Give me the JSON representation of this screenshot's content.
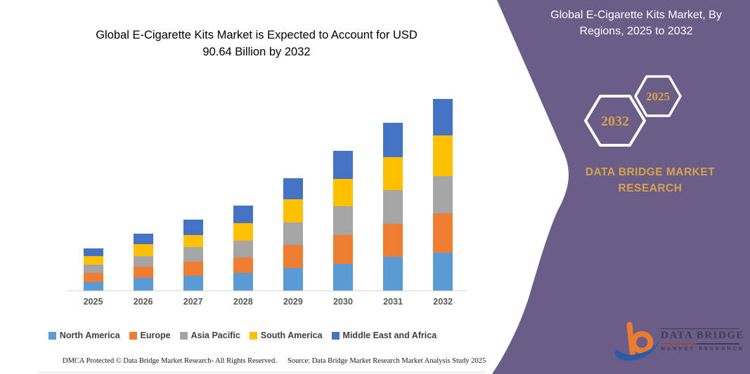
{
  "page": {
    "background": "#ffffff",
    "accent_purple": "#6A5D87",
    "accent_gold": "#D9A24A",
    "title_color": "#1F4E79"
  },
  "chart": {
    "title_lines": [
      "Global E-Cigarette Kits Market is Expected to Account for USD",
      "90.64 Billion by 2032"
    ],
    "footer_left": "DMCA Protected © Data Bridge Market Research-  All Rights Reserved.",
    "footer_right": "Source: Data Bridge Market Research  Market Analysis Study 2025"
  },
  "chart_data": {
    "type": "bar",
    "stacked": true,
    "title": "Global E-Cigarette Kits Market is Expected to Account for USD 90.64 Billion by 2032",
    "unit": "USD Billion",
    "categories": [
      "2025",
      "2026",
      "2027",
      "2028",
      "2029",
      "2030",
      "2031",
      "2032"
    ],
    "series": [
      {
        "name": "North America",
        "color": "#5B9BD5",
        "values": [
          4.1,
          5.9,
          6.9,
          8.3,
          10.7,
          12.7,
          16.0,
          18.0
        ]
      },
      {
        "name": "Europe",
        "color": "#ED7D31",
        "values": [
          4.2,
          5.2,
          6.7,
          7.3,
          10.9,
          13.5,
          15.7,
          18.6
        ]
      },
      {
        "name": "Asia Pacific",
        "color": "#A5A5A5",
        "values": [
          3.9,
          5.0,
          6.9,
          8.0,
          10.5,
          13.6,
          15.8,
          17.6
        ]
      },
      {
        "name": "South America",
        "color": "#FFC000",
        "values": [
          4.1,
          5.7,
          5.7,
          8.2,
          10.9,
          12.9,
          15.5,
          19.2
        ]
      },
      {
        "name": "Middle East and Africa",
        "color": "#4472C4",
        "values": [
          3.7,
          5.0,
          7.2,
          8.4,
          9.9,
          13.3,
          16.3,
          17.2
        ]
      }
    ],
    "totals_estimated": [
      20.0,
      26.8,
      33.4,
      40.2,
      52.9,
      66.0,
      79.3,
      90.6
    ],
    "highlight_total_2032": "USD 90.64 Billion",
    "xlabel": "",
    "ylabel": "",
    "y_axis_shown": false,
    "gridlines": false,
    "legend_position": "bottom"
  },
  "side_panel": {
    "title_lines": [
      "Global E-Cigarette Kits Market, By",
      "Regions, 2025 to 2032"
    ],
    "hexagon_back_label": "2032",
    "hexagon_front_label": "2025",
    "brand_line1": "DATA BRIDGE MARKET",
    "brand_line2": "RESEARCH",
    "logo_name": "DATA BRIDGE",
    "logo_subname": "MARKET RESEARCH"
  }
}
